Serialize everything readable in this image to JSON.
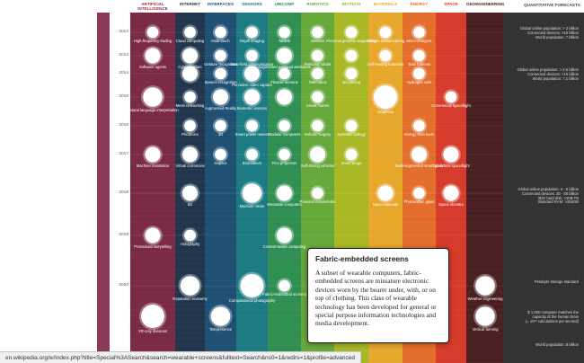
{
  "colors": {
    "ai": "#7a2a45",
    "internet": "#21364c",
    "interfaces": "#1f4f72",
    "sensors": "#1c7a82",
    "ubicomp": "#2f8f52",
    "robotics": "#67a83a",
    "biotech": "#a8b825",
    "materials": "#e6a72a",
    "energy": "#e36d2a",
    "space": "#d63b2b",
    "geoengineering": "#4a1f22",
    "forecasts": "#333333",
    "ai_left": "#8a3a58"
  },
  "columns": [
    {
      "key": "ai",
      "header": "ARTIFICIAL\nINTELLIGENCE",
      "header_color": "#9a2a40"
    },
    {
      "key": "internet",
      "header": "INTERNET",
      "header_color": "#21364c"
    },
    {
      "key": "interfaces",
      "header": "INTERFACES",
      "header_color": "#1f4f72"
    },
    {
      "key": "sensors",
      "header": "SENSORS",
      "header_color": "#1c7a82"
    },
    {
      "key": "ubicomp",
      "header": "UBICOMP",
      "header_color": "#2f8f52"
    },
    {
      "key": "robotics",
      "header": "ROBOTICS",
      "header_color": "#67a83a"
    },
    {
      "key": "biotech",
      "header": "BIOTECH",
      "header_color": "#a8b825"
    },
    {
      "key": "materials",
      "header": "MATERIALS",
      "header_color": "#e6a72a"
    },
    {
      "key": "energy",
      "header": "ENERGY",
      "header_color": "#e36d2a"
    },
    {
      "key": "space",
      "header": "SPACE",
      "header_color": "#d63b2b"
    },
    {
      "key": "geoengineering",
      "header": "GEOENGINEERING",
      "header_color": "#4a1f22"
    }
  ],
  "forecast_header": "QUANTITATIVE FORECASTS",
  "years": [
    "2012",
    "2013",
    "2014",
    "2015",
    "2016",
    "2017",
    "2018",
    "2019",
    "2020"
  ],
  "chart_data": {
    "type": "scatter",
    "columns_axis": [
      "ARTIFICIAL INTELLIGENCE",
      "INTERNET",
      "INTERFACES",
      "SENSORS",
      "UBICOMP",
      "ROBOTICS",
      "BIOTECH",
      "MATERIALS",
      "ENERGY",
      "SPACE",
      "GEOENGINEERING"
    ],
    "year_ticks": [
      "2012",
      "2013",
      "2014",
      "2015",
      "2016",
      "2017",
      "2018",
      "2019",
      "2020"
    ],
    "points": [
      {
        "column": "ARTIFICIAL INTELLIGENCE",
        "year": 2012,
        "label": "High-frequency trading",
        "size": 2
      },
      {
        "column": "ARTIFICIAL INTELLIGENCE",
        "year": 2013,
        "label": "Software agents",
        "size": 3
      },
      {
        "column": "ARTIFICIAL INTELLIGENCE",
        "year": 2015,
        "label": "Natural language interpretation",
        "size": 4
      },
      {
        "column": "ARTIFICIAL INTELLIGENCE",
        "year": 2017,
        "label": "Machine translation",
        "size": 3
      },
      {
        "column": "ARTIFICIAL INTELLIGENCE",
        "year": 2019,
        "label": "Procedural storytelling",
        "size": 3
      },
      {
        "column": "ARTIFICIAL INTELLIGENCE",
        "year": 2021,
        "label": "VR-only divisions",
        "size": 5
      },
      {
        "column": "INTERNET",
        "year": 2012,
        "label": "Cloud computing",
        "size": 2
      },
      {
        "column": "INTERNET",
        "year": 2013,
        "label": "Cyber-warfare",
        "size": 3
      },
      {
        "column": "INTERNET",
        "year": 2014,
        "label": "",
        "size": 3
      },
      {
        "column": "INTERNET",
        "year": 2015,
        "label": "Mesh networking",
        "size": 2
      },
      {
        "column": "INTERNET",
        "year": 2016,
        "label": "Photonics",
        "size": 2
      },
      {
        "column": "INTERNET",
        "year": 2017,
        "label": "Virtual currencies",
        "size": 3
      },
      {
        "column": "INTERNET",
        "year": 2018,
        "label": "5G",
        "size": 3
      },
      {
        "column": "INTERNET",
        "year": 2019,
        "label": "Holography",
        "size": 2
      },
      {
        "column": "INTERNET",
        "year": 2020,
        "label": "Reputation economy",
        "size": 4
      },
      {
        "column": "INTERFACES",
        "year": 2012,
        "label": "Multi-touch",
        "size": 2
      },
      {
        "column": "INTERFACES",
        "year": 2013,
        "label": "Gesture recognition",
        "size": 2
      },
      {
        "column": "INTERFACES",
        "year": 2014,
        "label": "Speech recognition",
        "size": 2
      },
      {
        "column": "INTERFACES",
        "year": 2015,
        "label": "Augmented Reality",
        "size": 3
      },
      {
        "column": "INTERFACES",
        "year": 2016,
        "label": "3D",
        "size": 2
      },
      {
        "column": "INTERFACES",
        "year": 2017,
        "label": "Haptics",
        "size": 2
      },
      {
        "column": "INTERFACES",
        "year": 2021,
        "label": "Telepresence",
        "size": 4
      },
      {
        "column": "SENSORS",
        "year": 2012,
        "label": "Depth imaging",
        "size": 2
      },
      {
        "column": "SENSORS",
        "year": 2013,
        "label": "Near-field communication",
        "size": 2
      },
      {
        "column": "SENSORS",
        "year": 2014,
        "label": "Pervasive video capture",
        "size": 3
      },
      {
        "column": "SENSORS",
        "year": 2015,
        "label": "Biometric sensors",
        "size": 3
      },
      {
        "column": "SENSORS",
        "year": 2016,
        "label": "Smart power meters",
        "size": 2
      },
      {
        "column": "SENSORS",
        "year": 2017,
        "label": "Biomarkers",
        "size": 2
      },
      {
        "column": "SENSORS",
        "year": 2018,
        "label": "Machine vision",
        "size": 4
      },
      {
        "column": "SENSORS",
        "year": 2020,
        "label": "Computational photography",
        "size": 5
      },
      {
        "column": "UBICOMP",
        "year": 2012,
        "label": "Tablets",
        "size": 2
      },
      {
        "column": "UBICOMP",
        "year": 2013,
        "label": "Augmented personal assistants",
        "size": 3
      },
      {
        "column": "UBICOMP",
        "year": 2014,
        "label": "Flexible screens",
        "size": 2
      },
      {
        "column": "UBICOMP",
        "year": 2015,
        "label": "",
        "size": 3
      },
      {
        "column": "UBICOMP",
        "year": 2016,
        "label": "Modular computers",
        "size": 2
      },
      {
        "column": "UBICOMP",
        "year": 2017,
        "label": "Pico projectors",
        "size": 2
      },
      {
        "column": "UBICOMP",
        "year": 2018,
        "label": "Wearable computers",
        "size": 3
      },
      {
        "column": "UBICOMP",
        "year": 2019,
        "label": "Context-aware computing",
        "size": 3
      },
      {
        "column": "UBICOMP",
        "year": 2020,
        "label": "Fabric-embedded screens",
        "size": 2
      },
      {
        "column": "ROBOTICS",
        "year": 2012,
        "label": "Sensors",
        "size": 2
      },
      {
        "column": "ROBOTICS",
        "year": 2013,
        "label": "Personal robots",
        "size": 2
      },
      {
        "column": "ROBOTICS",
        "year": 2014,
        "label": "Telematics",
        "size": 2
      },
      {
        "column": "ROBOTICS",
        "year": 2015,
        "label": "Smart homes",
        "size": 2
      },
      {
        "column": "ROBOTICS",
        "year": 2016,
        "label": "Robotic surgery",
        "size": 2
      },
      {
        "column": "ROBOTICS",
        "year": 2017,
        "label": "Self-driving vehicles",
        "size": 3
      },
      {
        "column": "ROBOTICS",
        "year": 2018,
        "label": "Powered exoskeleton",
        "size": 2
      },
      {
        "column": "BIOTECH",
        "year": 2012,
        "label": "Personal genome sequencing",
        "size": 2
      },
      {
        "column": "BIOTECH",
        "year": 2013,
        "label": "",
        "size": 2
      },
      {
        "column": "BIOTECH",
        "year": 2014,
        "label": "3D printing",
        "size": 2
      },
      {
        "column": "BIOTECH",
        "year": 2016,
        "label": "Synthetic biology",
        "size": 2
      },
      {
        "column": "BIOTECH",
        "year": 2017,
        "label": "Smart drugs",
        "size": 2
      },
      {
        "column": "MATERIALS",
        "year": 2012,
        "label": "Additive manufacturing",
        "size": 2
      },
      {
        "column": "MATERIALS",
        "year": 2013,
        "label": "Self-healing materials",
        "size": 2
      },
      {
        "column": "MATERIALS",
        "year": 2015,
        "label": "Graphene",
        "size": 5
      },
      {
        "column": "MATERIALS",
        "year": 2018,
        "label": "Nano-materials",
        "size": 3
      },
      {
        "column": "ENERGY",
        "year": 2012,
        "label": "Micro-chargers",
        "size": 2
      },
      {
        "column": "ENERGY",
        "year": 2013,
        "label": "Tidal turbines",
        "size": 2
      },
      {
        "column": "ENERGY",
        "year": 2014,
        "label": "Hydrogen cells",
        "size": 2
      },
      {
        "column": "ENERGY",
        "year": 2016,
        "label": "Energy from fuels",
        "size": 2
      },
      {
        "column": "ENERGY",
        "year": 2017,
        "label": "Multi-segmented smart grids",
        "size": 3
      },
      {
        "column": "ENERGY",
        "year": 2018,
        "label": "Photovoltaic glass",
        "size": 2
      },
      {
        "column": "ENERGY",
        "year": 2021,
        "label": "Bio-mechanical harvesting",
        "size": 3
      },
      {
        "column": "SPACE",
        "year": 2015,
        "label": "Commercial spaceflight",
        "size": 2
      },
      {
        "column": "SPACE",
        "year": 2017,
        "label": "Sub-orbital spaceflight",
        "size": 3
      },
      {
        "column": "SPACE",
        "year": 2018,
        "label": "Space elevator",
        "size": 3
      },
      {
        "column": "GEOENGINEERING",
        "year": 2020,
        "label": "Weather engineering",
        "size": 4
      },
      {
        "column": "GEOENGINEERING",
        "year": 2021,
        "label": "Vertical farming",
        "size": 4
      }
    ]
  },
  "forecasts": [
    {
      "text": "Global online population: > 2 billion\nConnected devices: >10 billion\nWorld population: 7 billion",
      "year": 2012
    },
    {
      "text": "Global online population: > 2.5 billion\nConnected devices: >15 billion\nWorld population: 7.1 billion",
      "year": 2014
    },
    {
      "text": "Global online population: 4 - 5 billion\nConnected devices: 30 - 50 billion\n3DG hard disk: >20B TB\nStandard RAM: >256GB",
      "year": 2018
    },
    {
      "text": "Petabyte storage standard",
      "year": 2020
    },
    {
      "text": "$ 1,000 computer matches the\ncapacity of the human brain\n(= 10¹⁶ calculations per second)",
      "year": 2021
    },
    {
      "text": "World population: 8 billion",
      "year": 2022
    }
  ],
  "tooltip": {
    "title": "Fabric-embedded screens",
    "body": "A subset of wearable computers, fabric-embedded screens are miniature electronic devices worn by the bearer under, with, or on top of clothing. This class of wearable technology has been developed for general or special purpose information technologies and media development."
  },
  "status_bar": {
    "url": "en.wikipedia.org/w/index.php?title=Special%3ASearch&search=wearable+screens&fulltext=Search&ns0=1&redirs=1&profile=advanced"
  }
}
